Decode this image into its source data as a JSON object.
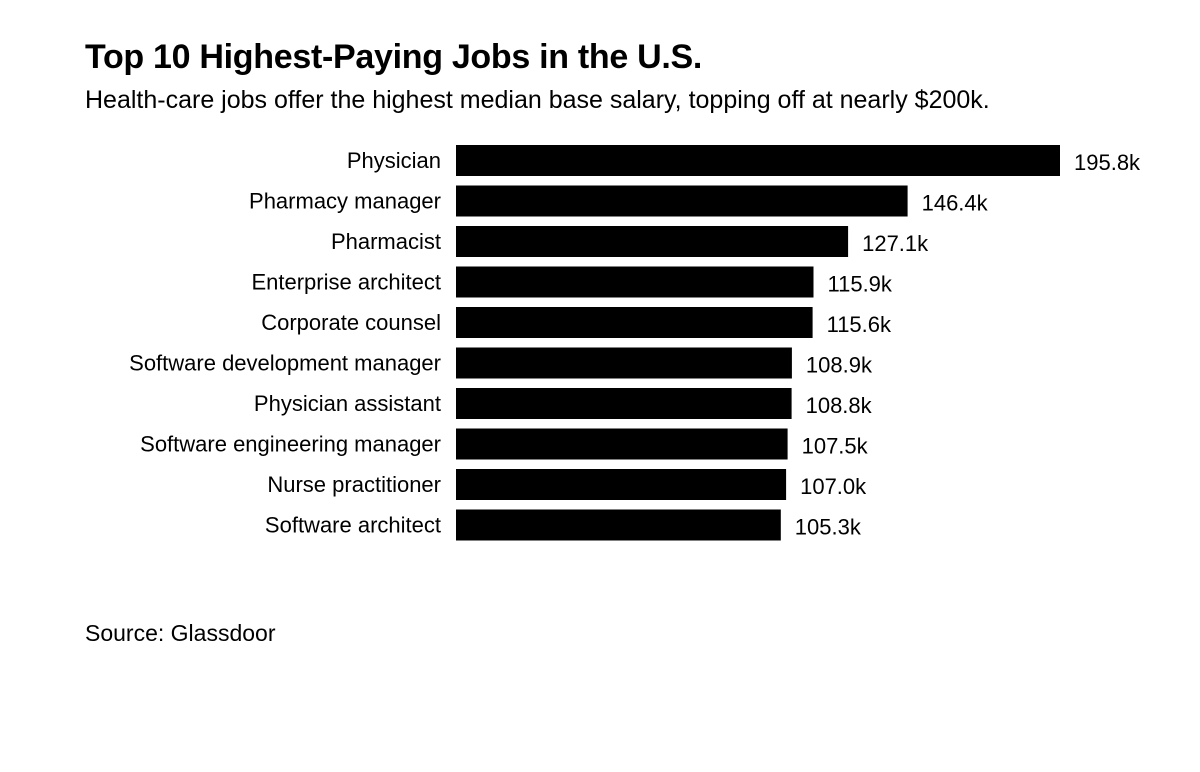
{
  "header": {
    "title": "Top 10 Highest-Paying Jobs in the U.S.",
    "subtitle": "Health-care jobs offer the highest median base salary, topping off at nearly $200k."
  },
  "footer": {
    "source": "Source: Glassdoor"
  },
  "colors": {
    "bar": "#000000",
    "text": "#000000",
    "background": "#ffffff"
  },
  "chart_data": {
    "type": "bar",
    "orientation": "horizontal",
    "title": "Top 10 Highest-Paying Jobs in the U.S.",
    "subtitle": "Health-care jobs offer the highest median base salary, topping off at nearly $200k.",
    "xlabel": "",
    "ylabel": "",
    "unit": "k",
    "xlim": [
      0,
      195.8
    ],
    "categories": [
      "Physician",
      "Pharmacy manager",
      "Pharmacist",
      "Enterprise architect",
      "Corporate counsel",
      "Software development manager",
      "Physician assistant",
      "Software engineering manager",
      "Nurse practitioner",
      "Software architect"
    ],
    "values": [
      195.8,
      146.4,
      127.1,
      115.9,
      115.6,
      108.9,
      108.8,
      107.5,
      107.0,
      105.3
    ],
    "labels": [
      "195.8k",
      "146.4k",
      "127.1k",
      "115.9k",
      "115.6k",
      "108.9k",
      "108.8k",
      "107.5k",
      "107.0k",
      "105.3k"
    ],
    "grid": false,
    "legend": "none"
  }
}
